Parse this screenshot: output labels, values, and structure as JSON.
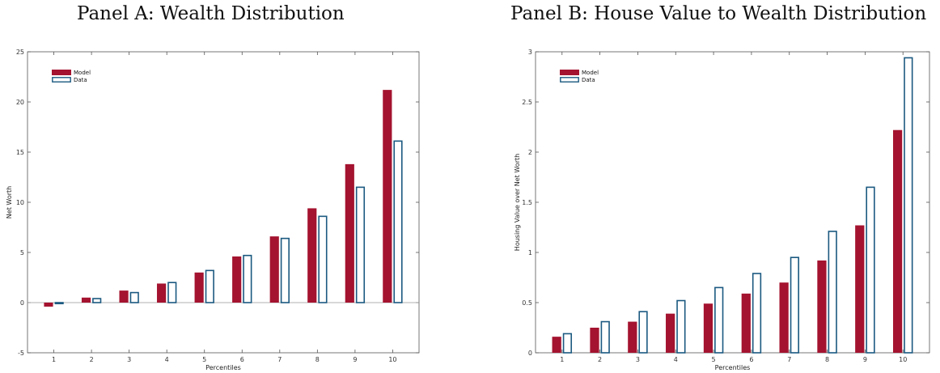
{
  "colors": {
    "model": "#a4132f",
    "data_edge": "#1b5980",
    "axis": "#555555",
    "zero_line": "#999999"
  },
  "chart_data": [
    {
      "type": "bar",
      "title": "Panel A: Wealth Distribution",
      "xlabel": "Percentiles",
      "ylabel": "Net Worth",
      "ylim": [
        -5,
        25
      ],
      "yticks": [
        "-5",
        "0",
        "5",
        "10",
        "15",
        "20",
        "25"
      ],
      "categories": [
        "1",
        "2",
        "3",
        "4",
        "5",
        "6",
        "7",
        "8",
        "9",
        "10"
      ],
      "legend_position": "top-left",
      "series": [
        {
          "name": "Model",
          "style": "filled",
          "values": [
            -0.4,
            0.5,
            1.2,
            1.9,
            3.0,
            4.6,
            6.6,
            9.4,
            13.8,
            21.2
          ]
        },
        {
          "name": "Data",
          "style": "outline",
          "values": [
            -0.1,
            0.4,
            1.0,
            2.0,
            3.2,
            4.7,
            6.4,
            8.6,
            11.5,
            16.1
          ]
        }
      ]
    },
    {
      "type": "bar",
      "title": "Panel B: House Value to Wealth Distribution",
      "xlabel": "Percentiles",
      "ylabel": "Housing Value over Net Worth",
      "ylim": [
        0,
        3
      ],
      "yticks": [
        "0",
        "0.5",
        "1",
        "1.5",
        "2",
        "2.5",
        "3"
      ],
      "categories": [
        "1",
        "2",
        "3",
        "4",
        "5",
        "6",
        "7",
        "8",
        "9",
        "10"
      ],
      "legend_position": "top-left",
      "series": [
        {
          "name": "Model",
          "style": "filled",
          "values": [
            0.16,
            0.25,
            0.31,
            0.39,
            0.49,
            0.59,
            0.7,
            0.92,
            1.27,
            2.22
          ]
        },
        {
          "name": "Data",
          "style": "outline",
          "values": [
            0.19,
            0.31,
            0.41,
            0.52,
            0.65,
            0.79,
            0.95,
            1.21,
            1.65,
            2.94
          ]
        }
      ]
    }
  ]
}
